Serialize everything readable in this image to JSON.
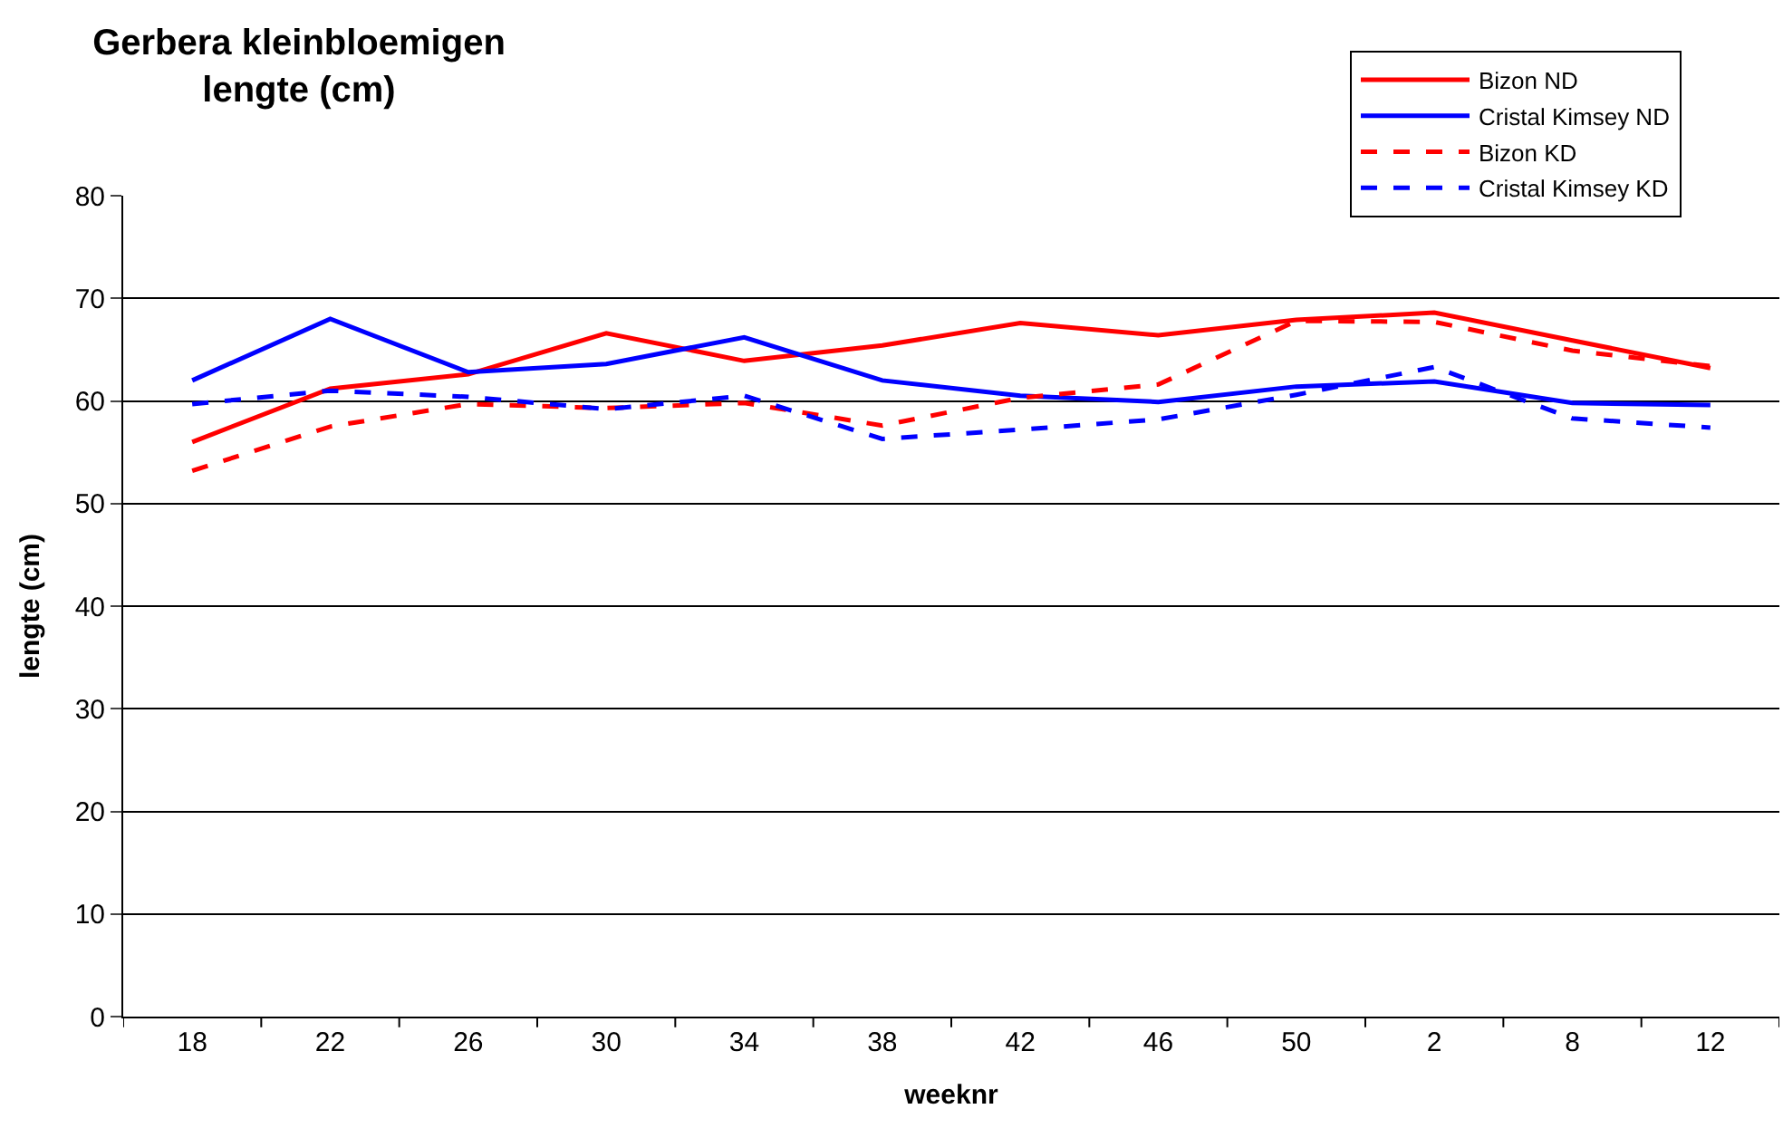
{
  "chart_data": {
    "type": "line",
    "title": "Gerbera kleinbloemigen\nlengte (cm)",
    "xlabel": "weeknr",
    "ylabel": "lengte (cm)",
    "categories": [
      "18",
      "22",
      "26",
      "30",
      "34",
      "38",
      "42",
      "46",
      "50",
      "2",
      "8",
      "12"
    ],
    "series": [
      {
        "name": "Bizon ND",
        "color": "#ff0000",
        "line_style": "solid",
        "values": [
          56,
          61.2,
          62.6,
          66.6,
          63.9,
          65.4,
          67.6,
          66.4,
          67.9,
          68.6,
          65.9,
          63.2
        ]
      },
      {
        "name": "Cristal Kimsey ND",
        "color": "#0000ff",
        "line_style": "solid",
        "values": [
          62,
          68,
          62.8,
          63.6,
          66.2,
          62,
          60.5,
          59.9,
          61.4,
          61.9,
          59.8,
          59.6
        ]
      },
      {
        "name": "Bizon KD",
        "color": "#ff0000",
        "line_style": "dashed",
        "values": [
          53.2,
          57.5,
          59.7,
          59.3,
          59.8,
          57.6,
          60.3,
          61.6,
          67.8,
          67.7,
          64.9,
          63.4
        ]
      },
      {
        "name": "Cristal Kimsey KD",
        "color": "#0000ff",
        "line_style": "dashed",
        "values": [
          59.7,
          61,
          60.4,
          59.2,
          60.5,
          56.3,
          57.2,
          58.2,
          60.6,
          63.3,
          58.3,
          57.4
        ]
      }
    ],
    "ylim": [
      0,
      80
    ],
    "yticks": [
      0,
      10,
      20,
      30,
      40,
      50,
      60,
      70,
      80
    ],
    "grid": "y",
    "legend": "top right",
    "marker": "none"
  }
}
